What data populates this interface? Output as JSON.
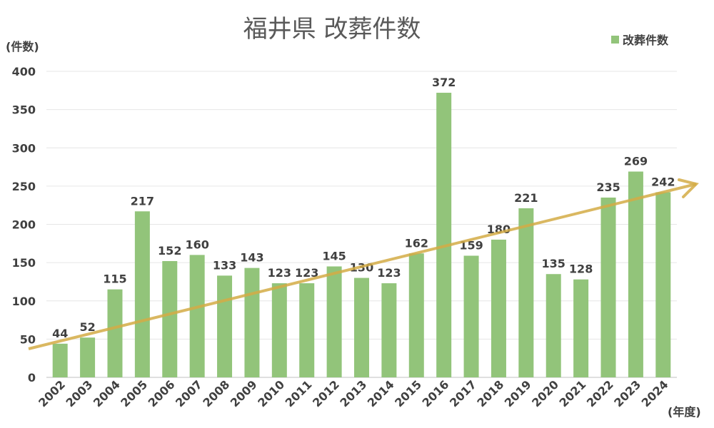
{
  "chart_data": {
    "type": "bar",
    "title": "福井県 改葬件数",
    "ylabel": "(件数)",
    "xlabel": "(年度)",
    "legend": {
      "entries": [
        "改葬件数"
      ],
      "placement": "top-right"
    },
    "categories": [
      "2002",
      "2003",
      "2004",
      "2005",
      "2006",
      "2007",
      "2008",
      "2009",
      "2010",
      "2011",
      "2012",
      "2013",
      "2014",
      "2015",
      "2016",
      "2017",
      "2018",
      "2019",
      "2020",
      "2021",
      "2022",
      "2023",
      "2024"
    ],
    "series": [
      {
        "name": "改葬件数",
        "values": [
          44,
          52,
          115,
          217,
          152,
          160,
          133,
          143,
          123,
          123,
          145,
          130,
          123,
          162,
          372,
          159,
          180,
          221,
          135,
          128,
          235,
          269,
          242
        ]
      }
    ],
    "ylim": [
      0,
      400
    ],
    "yticks": [
      0,
      50,
      100,
      150,
      200,
      250,
      300,
      350,
      400
    ],
    "grid": true,
    "trend_arrow": "increasing",
    "colors": {
      "bar": "#92c47a",
      "trend": "#d4ab45"
    }
  }
}
